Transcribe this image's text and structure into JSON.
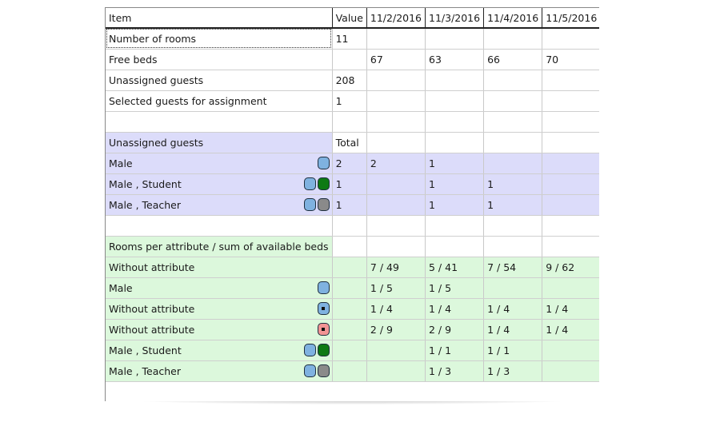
{
  "columns": [
    "Item",
    "Value",
    "11/2/2016",
    "11/3/2016",
    "11/4/2016",
    "11/5/2016"
  ],
  "colors": {
    "unassigned_bg": "#dcdcfa",
    "rooms_bg": "#dcf8dc",
    "male": "#7fb2e0",
    "student": "#0e7a14",
    "teacher": "#8a8a8a",
    "without_attr_blue": "#7fb2e0",
    "without_attr_pink": "#f29494"
  },
  "rows": [
    {
      "item": "Number of rooms",
      "value": "11",
      "d1": "",
      "d2": "",
      "d3": "",
      "d4": ""
    },
    {
      "item": "Free beds",
      "value": "",
      "d1": "67",
      "d2": "63",
      "d3": "66",
      "d4": "70"
    },
    {
      "item": "Unassigned guests",
      "value": "208",
      "d1": "",
      "d2": "",
      "d3": "",
      "d4": ""
    },
    {
      "item": "Selected guests for assignment",
      "value": "1",
      "d1": "",
      "d2": "",
      "d3": "",
      "d4": ""
    },
    {
      "item": "",
      "value": "",
      "d1": "",
      "d2": "",
      "d3": "",
      "d4": ""
    },
    {
      "item": "Unassigned guests",
      "value": "Total",
      "d1": "",
      "d2": "",
      "d3": "",
      "d4": ""
    },
    {
      "item": "Male",
      "value": "2",
      "d1": "2",
      "d2": "1",
      "d3": "",
      "d4": "",
      "icons": [
        "male"
      ]
    },
    {
      "item": "Male , Student",
      "value": "1",
      "d1": "",
      "d2": "1",
      "d3": "1",
      "d4": "",
      "icons": [
        "male",
        "student"
      ]
    },
    {
      "item": "Male , Teacher",
      "value": "1",
      "d1": "",
      "d2": "1",
      "d3": "1",
      "d4": "",
      "icons": [
        "male",
        "teacher"
      ]
    },
    {
      "item": "",
      "value": "",
      "d1": "",
      "d2": "",
      "d3": "",
      "d4": ""
    },
    {
      "item": "Rooms per attribute / sum of available beds",
      "value": "",
      "d1": "",
      "d2": "",
      "d3": "",
      "d4": ""
    },
    {
      "item": "Without attribute",
      "value": "",
      "d1": "7 / 49",
      "d2": "5 / 41",
      "d3": "7 / 54",
      "d4": "9 / 62"
    },
    {
      "item": "Male",
      "value": "",
      "d1": "1 / 5",
      "d2": "1 / 5",
      "d3": "",
      "d4": "",
      "icons": [
        "male"
      ]
    },
    {
      "item": "Without attribute",
      "value": "",
      "d1": "1 / 4",
      "d2": "1 / 4",
      "d3": "1 / 4",
      "d4": "1 / 4",
      "icons": [
        "blue-dot"
      ]
    },
    {
      "item": "Without attribute",
      "value": "",
      "d1": "2 / 9",
      "d2": "2 / 9",
      "d3": "1 / 4",
      "d4": "1 / 4",
      "icons": [
        "pink-dot"
      ]
    },
    {
      "item": "Male , Student",
      "value": "",
      "d1": "",
      "d2": "1 / 1",
      "d3": "1 / 1",
      "d4": "",
      "icons": [
        "male",
        "student"
      ]
    },
    {
      "item": "Male , Teacher",
      "value": "",
      "d1": "",
      "d2": "1 / 3",
      "d3": "1 / 3",
      "d4": "",
      "icons": [
        "male",
        "teacher"
      ]
    }
  ]
}
